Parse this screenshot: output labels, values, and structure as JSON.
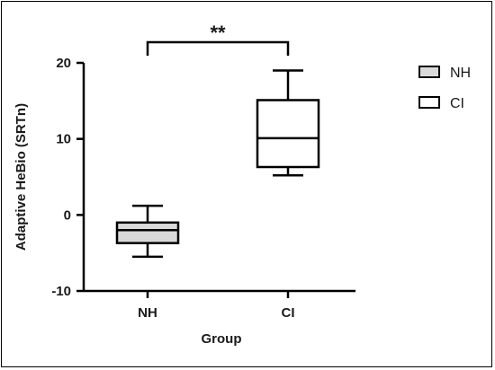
{
  "chart_data": {
    "type": "box",
    "xlabel": "Group",
    "ylabel": "Adaptive HeBio (SRTn)",
    "ylim": [
      -10,
      20
    ],
    "yticks": [
      -10,
      0,
      10,
      20
    ],
    "categories": [
      "NH",
      "CI"
    ],
    "boxes": [
      {
        "name": "NH",
        "min": -5.5,
        "q1": -3.7,
        "median": -2.0,
        "q3": -1.0,
        "max": 1.2,
        "fill": "#d9d9d9"
      },
      {
        "name": "CI",
        "min": 5.2,
        "q1": 6.3,
        "median": 10.1,
        "q3": 15.1,
        "max": 19.0,
        "fill": "#ffffff"
      }
    ],
    "significance": {
      "label": "**",
      "between": [
        "NH",
        "CI"
      ]
    },
    "legend": {
      "position": "right",
      "entries": [
        {
          "label": "NH",
          "fill": "#d9d9d9"
        },
        {
          "label": "CI",
          "fill": "#ffffff"
        }
      ]
    },
    "grid": false
  }
}
